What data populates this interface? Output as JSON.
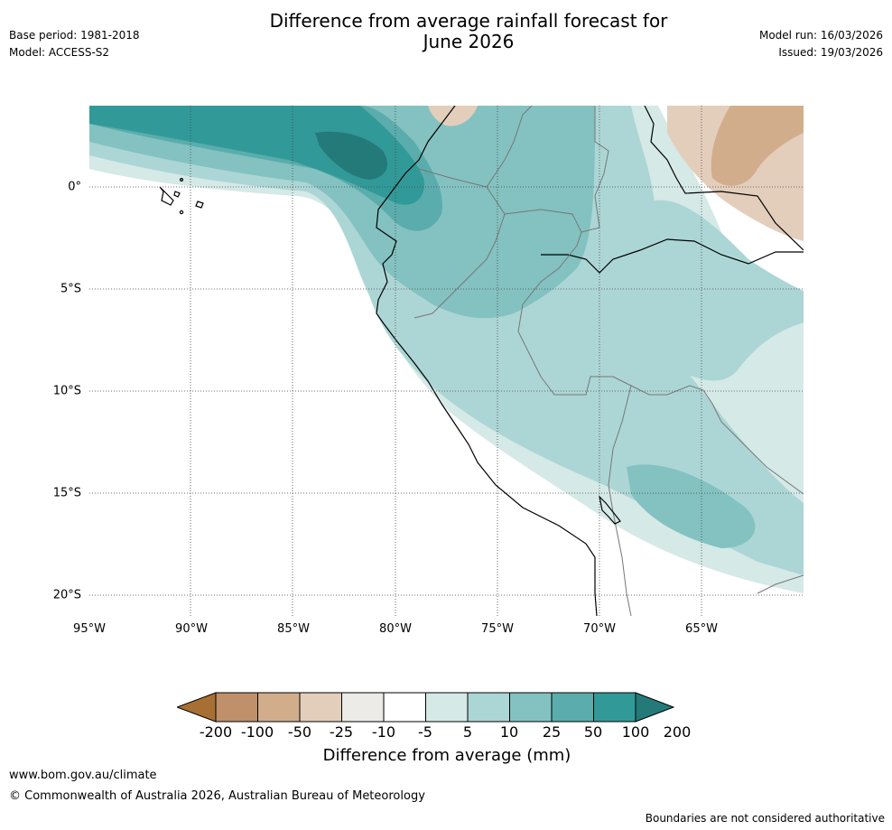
{
  "header": {
    "title_line1": "Difference from average rainfall forecast for",
    "title_line2": "June 2026",
    "base_period": "Base period: 1981-2018",
    "model": "Model: ACCESS-S2",
    "model_run": "Model run: 16/03/2026",
    "issued": "Issued: 19/03/2026"
  },
  "map": {
    "region": "Western South America",
    "longitude_ticks": [
      "95°W",
      "90°W",
      "85°W",
      "80°W",
      "75°W",
      "70°W",
      "65°W"
    ],
    "latitude_ticks": [
      "0°",
      "5°S",
      "10°S",
      "15°S",
      "20°S"
    ]
  },
  "legend": {
    "colors": [
      "#a86f35",
      "#c0906a",
      "#d2ad8c",
      "#e3cebc",
      "#ecebe7",
      "#ffffff",
      "#d5e9e7",
      "#acd6d5",
      "#83c2c0",
      "#5aadac",
      "#319a98",
      "#247a79"
    ],
    "tick_labels": [
      "-200",
      "-100",
      "-50",
      "-25",
      "-10",
      "-5",
      "5",
      "10",
      "25",
      "50",
      "100",
      "200"
    ],
    "label": "Difference from average (mm)"
  },
  "footer": {
    "url": "www.bom.gov.au/climate",
    "copyright": "© Commonwealth of Australia 2026, Australian Bureau of Meteorology",
    "disclaimer": "Boundaries are not considered authoritative"
  }
}
